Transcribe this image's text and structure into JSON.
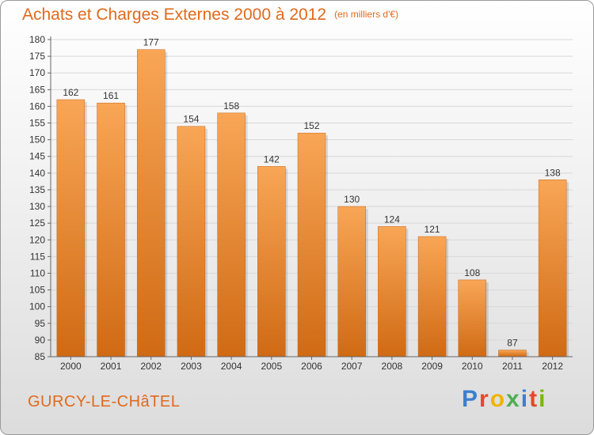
{
  "header": {
    "title": "Achats et Charges Externes 2000 à 2012",
    "unit": "(en milliers d'€)"
  },
  "footer": {
    "commune": "GURCY-LE-CHâTEL",
    "brand": "Proxiti",
    "brand_colors": [
      "#3c7fd0",
      "#e8462a",
      "#f0b400",
      "#4caf50",
      "#3c7fd0",
      "#e8462a",
      "#7ab800"
    ]
  },
  "colors": {
    "bar_light": "#f8a656",
    "bar_dark": "#d06a14",
    "axis": "#666666",
    "grid": "#d8d8d8"
  },
  "chart_data": {
    "type": "bar",
    "title": "Achats et Charges Externes 2000 à 2012",
    "subtitle": "(en milliers d'€)",
    "categories": [
      "2000",
      "2001",
      "2002",
      "2003",
      "2004",
      "2005",
      "2006",
      "2007",
      "2008",
      "2009",
      "2010",
      "2011",
      "2012"
    ],
    "values": [
      162,
      161,
      177,
      154,
      158,
      142,
      152,
      130,
      124,
      121,
      108,
      87,
      138
    ],
    "ylim": [
      85,
      180
    ],
    "yticks": [
      85,
      90,
      95,
      100,
      105,
      110,
      115,
      120,
      125,
      130,
      135,
      140,
      145,
      150,
      155,
      160,
      165,
      170,
      175,
      180
    ],
    "grid": true,
    "legend": "none"
  }
}
